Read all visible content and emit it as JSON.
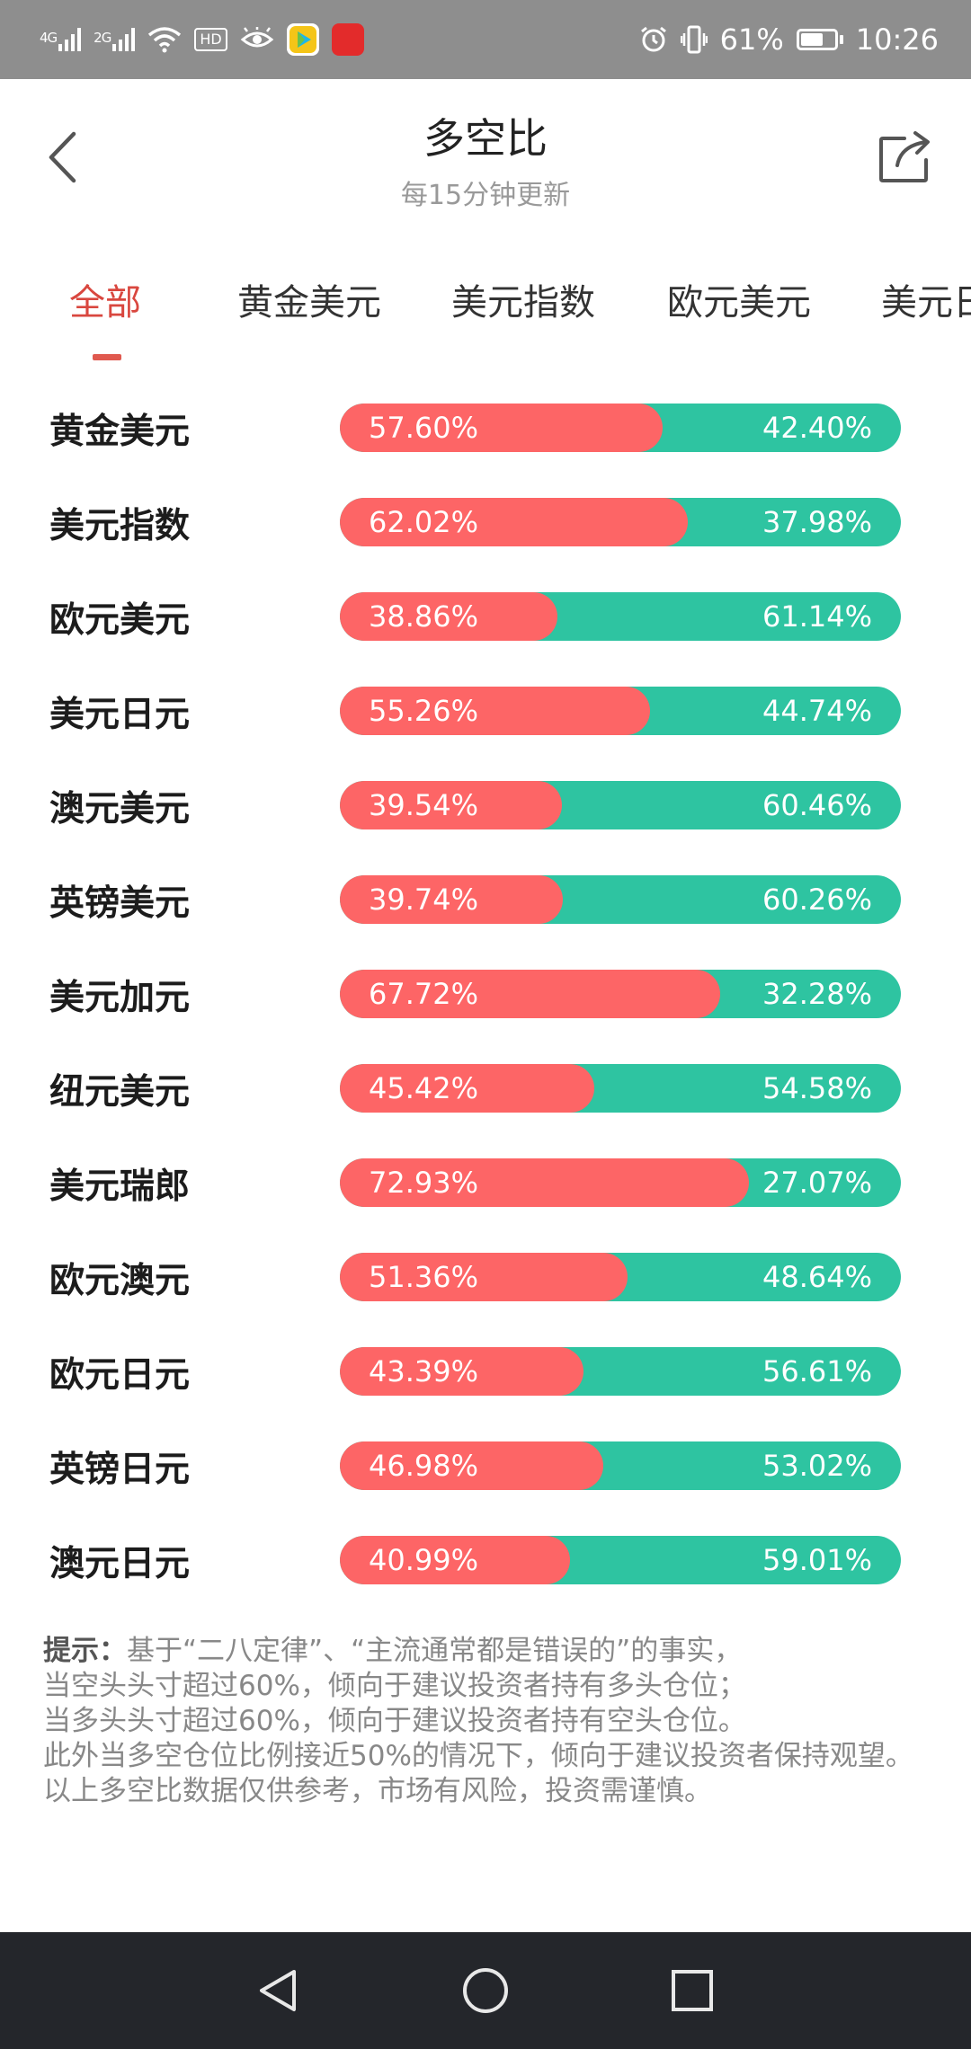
{
  "status_bar": {
    "sim1_type": "4G",
    "sim2_type": "2G",
    "hd_label": "HD",
    "battery": "61%",
    "time": "10:26"
  },
  "header": {
    "title": "多空比",
    "subtitle": "每15分钟更新"
  },
  "tabs": [
    {
      "label": "全部",
      "active": true
    },
    {
      "label": "黄金美元",
      "active": false
    },
    {
      "label": "美元指数",
      "active": false
    },
    {
      "label": "欧元美元",
      "active": false
    },
    {
      "label": "美元日元",
      "active": false
    }
  ],
  "rows": [
    {
      "name": "黄金美元",
      "long": 57.6,
      "long_label": "57.60%",
      "short_label": "42.40%"
    },
    {
      "name": "美元指数",
      "long": 62.02,
      "long_label": "62.02%",
      "short_label": "37.98%"
    },
    {
      "name": "欧元美元",
      "long": 38.86,
      "long_label": "38.86%",
      "short_label": "61.14%"
    },
    {
      "name": "美元日元",
      "long": 55.26,
      "long_label": "55.26%",
      "short_label": "44.74%"
    },
    {
      "name": "澳元美元",
      "long": 39.54,
      "long_label": "39.54%",
      "short_label": "60.46%"
    },
    {
      "name": "英镑美元",
      "long": 39.74,
      "long_label": "39.74%",
      "short_label": "60.26%"
    },
    {
      "name": "美元加元",
      "long": 67.72,
      "long_label": "67.72%",
      "short_label": "32.28%"
    },
    {
      "name": "纽元美元",
      "long": 45.42,
      "long_label": "45.42%",
      "short_label": "54.58%"
    },
    {
      "name": "美元瑞郎",
      "long": 72.93,
      "long_label": "72.93%",
      "short_label": "27.07%"
    },
    {
      "name": "欧元澳元",
      "long": 51.36,
      "long_label": "51.36%",
      "short_label": "48.64%"
    },
    {
      "name": "欧元日元",
      "long": 43.39,
      "long_label": "43.39%",
      "short_label": "56.61%"
    },
    {
      "name": "英镑日元",
      "long": 46.98,
      "long_label": "46.98%",
      "short_label": "53.02%"
    },
    {
      "name": "澳元日元",
      "long": 40.99,
      "long_label": "40.99%",
      "short_label": "59.01%"
    }
  ],
  "note": {
    "prefix": "提示：",
    "line1": "基于“二八定律”、“主流通常都是错误的”的事实，",
    "line2": "当空头头寸超过60%，倾向于建议投资者持有多头仓位；",
    "line3": "当多头头寸超过60%，倾向于建议投资者持有空头仓位。",
    "line4": "此外当多空仓位比例接近50%的情况下，倾向于建议投资者保持观望。",
    "line5": "以上多空比数据仅供参考，市场有风险，投资需谨慎。"
  },
  "colors": {
    "long": "#fd6566",
    "short": "#2ec4a1",
    "accent": "#d9473f"
  },
  "icons": {
    "back": "chevron-left-icon",
    "share": "share-icon",
    "nav_back": "triangle-back-icon",
    "nav_home": "circle-home-icon",
    "nav_recents": "square-recents-icon"
  }
}
